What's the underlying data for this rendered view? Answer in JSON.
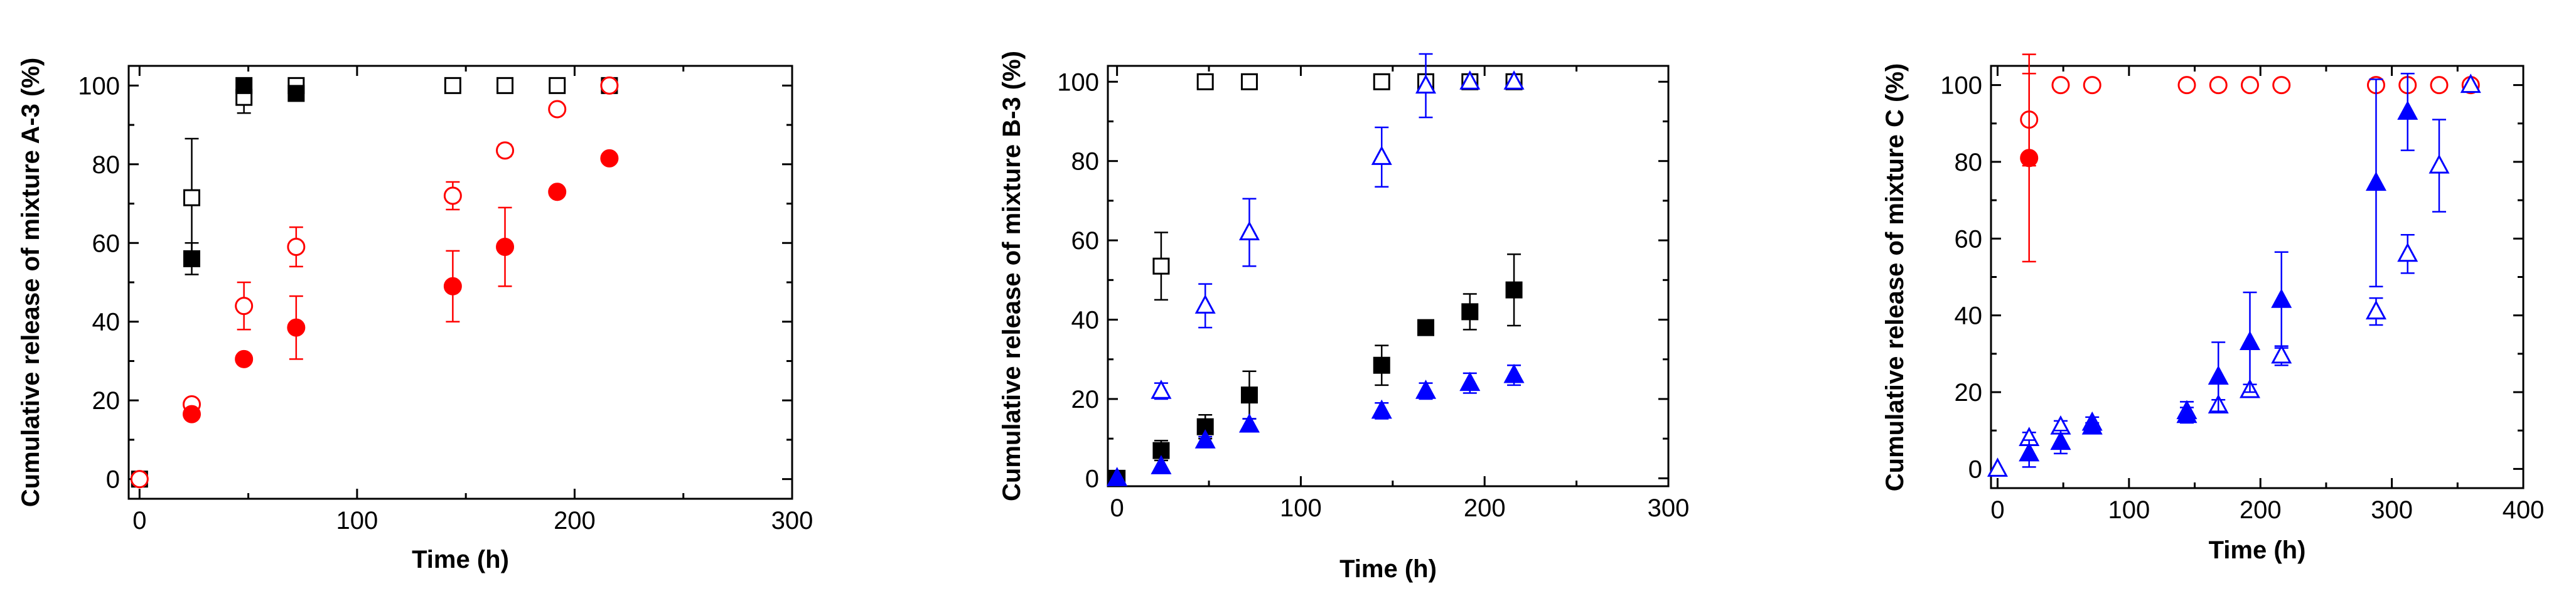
{
  "chart_data": [
    {
      "type": "scatter",
      "title": "",
      "xlabel": "Time (h)",
      "ylabel": "Cumulative release of mixture A-3 (%)",
      "xlim": [
        -5,
        300
      ],
      "ylim": [
        -5,
        105
      ],
      "xticks": [
        0,
        100,
        200,
        300
      ],
      "yticks": [
        0,
        20,
        40,
        60,
        80,
        100
      ],
      "xtick_labels": [
        "0",
        "100",
        "200",
        "300"
      ],
      "ytick_labels": [
        "0",
        "20",
        "40",
        "60",
        "80",
        "100"
      ],
      "series": [
        {
          "name": "black open squares",
          "color": "#000000",
          "marker": "square",
          "filled": false,
          "x": [
            0,
            24,
            48,
            72,
            144,
            168,
            192,
            216
          ],
          "y": [
            0,
            71.5,
            97,
            100,
            100,
            100,
            100,
            100
          ],
          "err": [
            0,
            15,
            4,
            0,
            0,
            0,
            0,
            0
          ]
        },
        {
          "name": "black filled squares",
          "color": "#000000",
          "marker": "square",
          "filled": true,
          "x": [
            24,
            48,
            72
          ],
          "y": [
            56,
            100,
            98
          ],
          "err": [
            4,
            0,
            0
          ]
        },
        {
          "name": "red open circles",
          "color": "#ff0000",
          "marker": "circle",
          "filled": false,
          "x": [
            0,
            24,
            48,
            72,
            144,
            168,
            192,
            216
          ],
          "y": [
            0,
            19,
            44,
            59,
            72,
            83.5,
            94,
            100
          ],
          "err": [
            0,
            1,
            6,
            5,
            3.5,
            1.5,
            0,
            0
          ]
        },
        {
          "name": "red filled circles",
          "color": "#ff0000",
          "marker": "circle",
          "filled": true,
          "x": [
            24,
            48,
            72,
            144,
            168,
            192,
            216
          ],
          "y": [
            16.5,
            30.5,
            38.5,
            49,
            59,
            73,
            81.5
          ],
          "err": [
            0,
            0,
            8,
            9,
            10,
            0,
            0
          ]
        }
      ]
    },
    {
      "type": "scatter",
      "title": "",
      "xlabel": "Time (h)",
      "ylabel": "Cumulative release of mixture B-3 (%)",
      "xlim": [
        -5,
        300
      ],
      "ylim": [
        -2,
        104
      ],
      "xticks": [
        0,
        100,
        200,
        300
      ],
      "yticks": [
        0,
        20,
        40,
        60,
        80,
        100
      ],
      "xtick_labels": [
        "0",
        "100",
        "200",
        "300"
      ],
      "ytick_labels": [
        "0",
        "20",
        "40",
        "60",
        "80",
        "100"
      ],
      "series": [
        {
          "name": "black open squares",
          "color": "#000000",
          "marker": "square",
          "filled": false,
          "x": [
            24,
            48,
            72,
            144,
            168,
            192,
            216
          ],
          "y": [
            53.5,
            100,
            100,
            100,
            100,
            100,
            100
          ],
          "err": [
            8.5,
            0,
            0,
            0,
            0,
            0,
            0
          ]
        },
        {
          "name": "black filled squares",
          "color": "#000000",
          "marker": "square",
          "filled": true,
          "x": [
            0,
            24,
            48,
            72,
            144,
            168,
            192,
            216
          ],
          "y": [
            0,
            7,
            13,
            21,
            28.5,
            38,
            42,
            47.5
          ],
          "err": [
            0,
            2.5,
            3,
            6,
            5,
            0,
            4.5,
            9
          ]
        },
        {
          "name": "blue open triangles",
          "color": "#0000ff",
          "marker": "triangle",
          "filled": false,
          "x": [
            24,
            48,
            72,
            144,
            168,
            192,
            216
          ],
          "y": [
            22,
            43.5,
            62,
            81,
            99,
            100,
            100
          ],
          "err": [
            2,
            5.5,
            8.5,
            7.5,
            8,
            0,
            0
          ]
        },
        {
          "name": "blue filled triangles",
          "color": "#0000ff",
          "marker": "triangle",
          "filled": true,
          "x": [
            0,
            24,
            48,
            72,
            144,
            168,
            192,
            216
          ],
          "y": [
            0,
            3,
            9.5,
            13.5,
            17,
            22,
            24,
            26
          ],
          "err": [
            0,
            0,
            1,
            1.5,
            2,
            2,
            2.5,
            2.5
          ]
        }
      ]
    },
    {
      "type": "scatter",
      "title": "",
      "xlabel": "Time (h)",
      "ylabel": "Cumulative release of mixture C (%)",
      "xlim": [
        -5,
        400
      ],
      "ylim": [
        -5,
        105
      ],
      "xticks": [
        0,
        100,
        200,
        300,
        400
      ],
      "yticks": [
        0,
        20,
        40,
        60,
        80,
        100
      ],
      "xtick_labels": [
        "0",
        "100",
        "200",
        "300",
        "400"
      ],
      "ytick_labels": [
        "0",
        "20",
        "40",
        "60",
        "80",
        "100"
      ],
      "series": [
        {
          "name": "red open circles",
          "color": "#ff0000",
          "marker": "circle",
          "filled": false,
          "x": [
            24,
            48,
            72,
            144,
            168,
            192,
            216,
            288,
            312,
            336,
            360
          ],
          "y": [
            91,
            100,
            100,
            100,
            100,
            100,
            100,
            100,
            100,
            100,
            100
          ],
          "err": [
            12,
            0,
            0,
            0,
            0,
            0,
            0,
            0,
            0,
            0,
            0
          ]
        },
        {
          "name": "red filled circles",
          "color": "#ff0000",
          "marker": "circle",
          "filled": true,
          "x": [
            24
          ],
          "y": [
            81
          ],
          "err": [
            27
          ]
        },
        {
          "name": "blue open triangles",
          "color": "#0000ff",
          "marker": "triangle",
          "filled": false,
          "x": [
            0,
            24,
            48,
            72,
            144,
            168,
            192,
            216,
            288,
            312,
            336,
            360
          ],
          "y": [
            0,
            8,
            11,
            12,
            15,
            16.5,
            20.5,
            29.5,
            41,
            56,
            79,
            100
          ],
          "err": [
            0,
            1.5,
            1.5,
            1.5,
            2.5,
            1.5,
            1.5,
            2.5,
            3.5,
            5,
            12,
            0
          ]
        },
        {
          "name": "blue filled triangles",
          "color": "#0000ff",
          "marker": "triangle",
          "filled": true,
          "x": [
            24,
            48,
            72,
            144,
            168,
            192,
            216,
            288,
            312
          ],
          "y": [
            4,
            7,
            11,
            14,
            24,
            33,
            44,
            74.5,
            93
          ],
          "err": [
            3.5,
            3,
            1,
            2,
            9,
            13,
            12.5,
            27,
            10
          ]
        }
      ]
    }
  ]
}
